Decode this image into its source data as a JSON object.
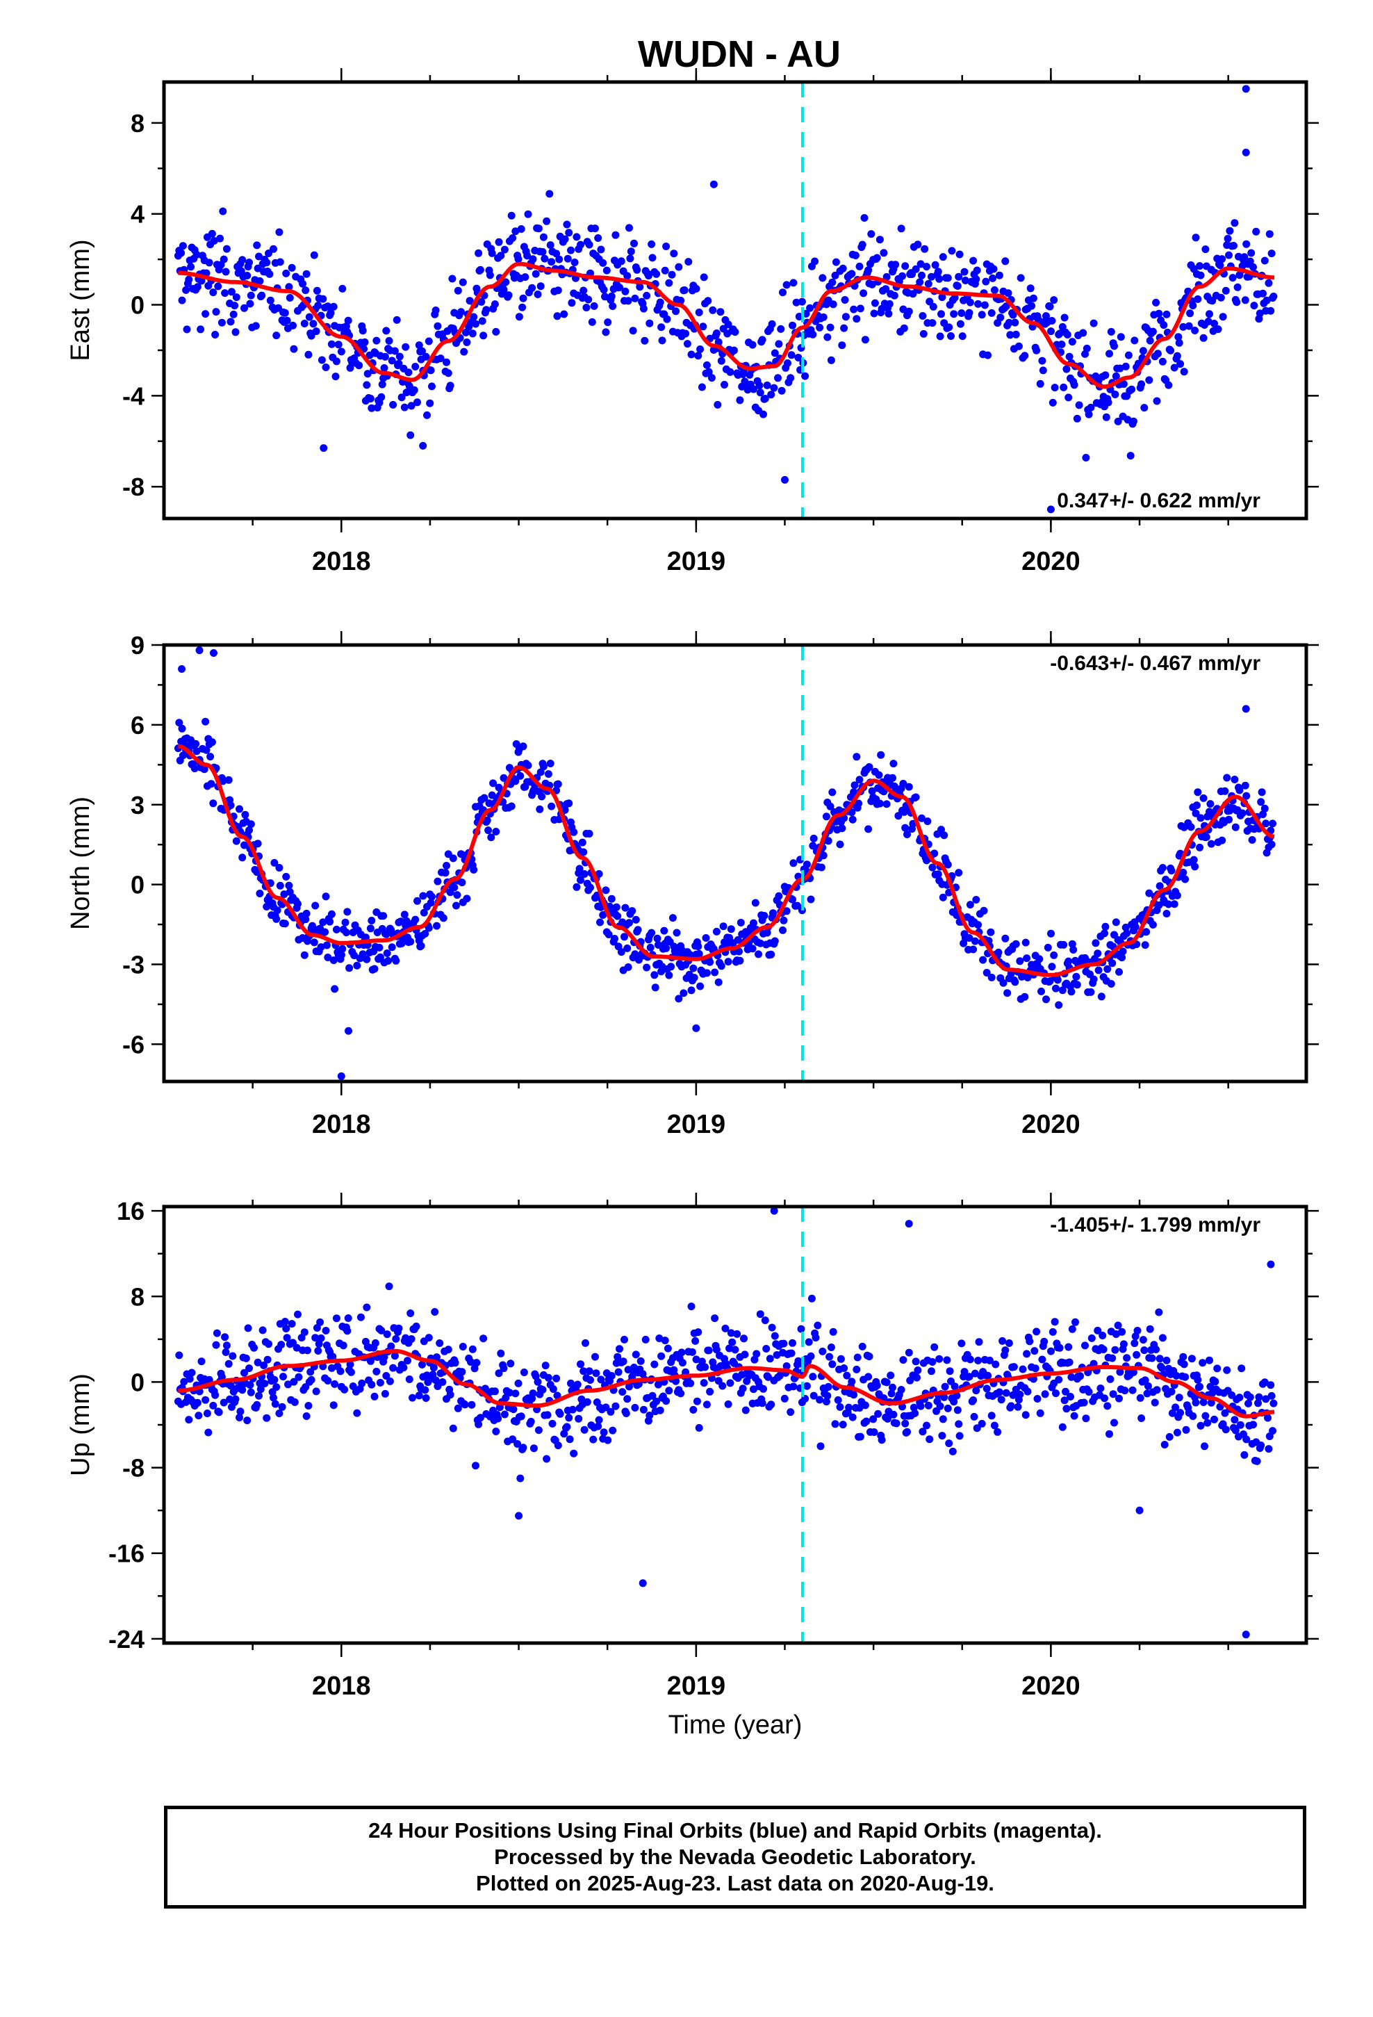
{
  "title": "WUDN - AU",
  "xlabel": "Time (year)",
  "footer": {
    "line1": "24 Hour Positions Using Final Orbits (blue) and Rapid Orbits (magenta).",
    "line2": "Processed by the Nevada Geodetic Laboratory.",
    "line3": "Plotted on 2025-Aug-23. Last data on 2020-Aug-19."
  },
  "colors": {
    "final_orbits": "#0000ff",
    "fit": "#ff0000",
    "equipment_change": "#00e5e5"
  },
  "chart_data": [
    {
      "type": "scatter",
      "panel": "east",
      "ylabel": "East (mm)",
      "rate_label": "0.347+/- 0.622 mm/yr",
      "rate_position": "bottom-right",
      "xlim": [
        2017.5,
        2020.72
      ],
      "ylim": [
        -9.4,
        9.8
      ],
      "x_ticks": [
        2018,
        2019,
        2020
      ],
      "y_ticks": [
        -8,
        -4,
        0,
        4,
        8
      ],
      "dashed_vertical_line_x": 2019.3,
      "data_x_range": [
        2017.54,
        2020.63
      ],
      "fit_line": {
        "x": [
          2017.54,
          2017.7,
          2017.85,
          2018.0,
          2018.12,
          2018.2,
          2018.3,
          2018.42,
          2018.5,
          2018.6,
          2018.72,
          2018.85,
          2018.95,
          2019.05,
          2019.15,
          2019.22,
          2019.3,
          2019.38,
          2019.48,
          2019.6,
          2019.72,
          2019.85,
          2019.95,
          2020.05,
          2020.15,
          2020.22,
          2020.32,
          2020.42,
          2020.5,
          2020.63
        ],
        "y": [
          1.4,
          1.0,
          0.6,
          -1.4,
          -3.0,
          -3.3,
          -1.6,
          0.8,
          1.8,
          1.5,
          1.2,
          1.0,
          0.0,
          -1.8,
          -2.8,
          -2.7,
          -1.0,
          0.6,
          1.2,
          0.8,
          0.5,
          0.4,
          -0.8,
          -2.6,
          -3.6,
          -3.2,
          -1.5,
          0.8,
          1.6,
          1.2
        ]
      },
      "points_description": "about 1000 daily positions scattered roughly ±3 mm around the fit; outliers up to 9.5 mm and down to -9 mm"
    },
    {
      "type": "scatter",
      "panel": "north",
      "ylabel": "North (mm)",
      "rate_label": "-0.643+/- 0.467 mm/yr",
      "rate_position": "top-right",
      "xlim": [
        2017.5,
        2020.72
      ],
      "ylim": [
        -7.4,
        9.0
      ],
      "x_ticks": [
        2018,
        2019,
        2020
      ],
      "y_ticks": [
        -6,
        -3,
        0,
        3,
        6,
        9
      ],
      "dashed_vertical_line_x": 2019.3,
      "data_x_range": [
        2017.54,
        2020.63
      ],
      "fit_line": {
        "x": [
          2017.54,
          2017.62,
          2017.72,
          2017.82,
          2017.92,
          2018.0,
          2018.12,
          2018.22,
          2018.32,
          2018.42,
          2018.5,
          2018.58,
          2018.68,
          2018.78,
          2018.88,
          2019.0,
          2019.1,
          2019.2,
          2019.3,
          2019.4,
          2019.5,
          2019.58,
          2019.68,
          2019.78,
          2019.88,
          2020.0,
          2020.12,
          2020.22,
          2020.32,
          2020.42,
          2020.52,
          2020.63
        ],
        "y": [
          5.2,
          4.5,
          1.8,
          -0.5,
          -1.9,
          -2.2,
          -2.1,
          -1.6,
          0.2,
          2.8,
          4.4,
          3.6,
          1.0,
          -1.6,
          -2.7,
          -2.8,
          -2.4,
          -1.6,
          0.2,
          2.6,
          3.9,
          3.3,
          0.8,
          -1.8,
          -3.2,
          -3.4,
          -3.0,
          -2.2,
          -0.2,
          2.0,
          3.3,
          1.8
        ]
      },
      "points_description": "about 1000 daily positions scattered roughly ±1.5 mm around the fit; early outliers near 8.7 mm, low outlier near -7.2 mm"
    },
    {
      "type": "scatter",
      "panel": "up",
      "ylabel": "Up (mm)",
      "rate_label": "-1.405+/- 1.799 mm/yr",
      "rate_position": "top-right",
      "xlim": [
        2017.5,
        2020.72
      ],
      "ylim": [
        -24.4,
        16.4
      ],
      "x_ticks": [
        2018,
        2019,
        2020
      ],
      "y_ticks": [
        -24,
        -16,
        -8,
        0,
        8,
        16
      ],
      "dashed_vertical_line_x": 2019.3,
      "data_x_range": [
        2017.54,
        2020.63
      ],
      "fit_line": {
        "x": [
          2017.54,
          2017.7,
          2017.85,
          2018.0,
          2018.15,
          2018.25,
          2018.35,
          2018.45,
          2018.55,
          2018.7,
          2018.85,
          2019.0,
          2019.15,
          2019.25,
          2019.3,
          2019.32,
          2019.42,
          2019.55,
          2019.7,
          2019.85,
          2020.0,
          2020.15,
          2020.25,
          2020.35,
          2020.45,
          2020.55,
          2020.63
        ],
        "y": [
          -0.8,
          0.2,
          1.5,
          2.0,
          2.9,
          2.0,
          -0.2,
          -2.0,
          -2.2,
          -0.8,
          0.2,
          0.6,
          1.3,
          1.1,
          0.5,
          1.5,
          -0.5,
          -2.0,
          -1.0,
          0.2,
          0.8,
          1.4,
          1.3,
          0.0,
          -1.5,
          -3.2,
          -2.8
        ]
      },
      "points_description": "about 1000 daily positions scattered roughly ±6 mm around the fit; outliers near 16 mm, -19 mm and -23.5 mm"
    }
  ]
}
